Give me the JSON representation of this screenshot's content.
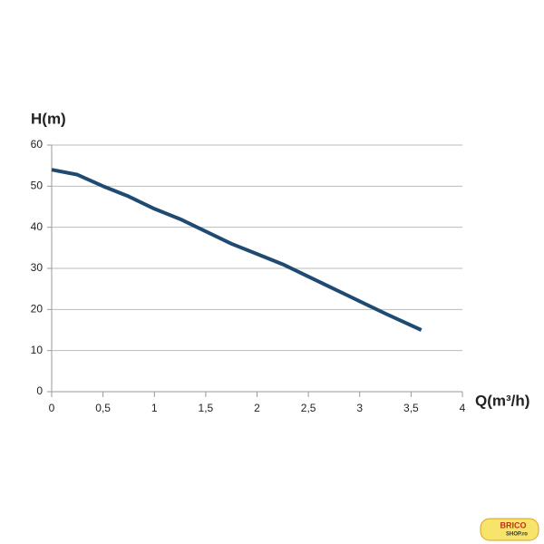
{
  "chart_data": {
    "type": "line",
    "y_label": "H(m)",
    "x_label": "Q(m³/h)",
    "x": [
      0,
      0.25,
      0.5,
      0.75,
      1,
      1.25,
      1.5,
      1.75,
      2,
      2.25,
      2.5,
      2.75,
      3,
      3.25,
      3.6
    ],
    "series": [
      {
        "color": "#1f4a72",
        "values": [
          54,
          52.8,
          50,
          47.5,
          44.5,
          42,
          39,
          36,
          33.5,
          31,
          28,
          25,
          22,
          19,
          15
        ]
      }
    ],
    "xlim": [
      0,
      4
    ],
    "xticks": [
      0,
      {
        "value": 0.5,
        "label": "0,5"
      },
      1,
      {
        "value": 1.5,
        "label": "1,5"
      },
      2,
      {
        "value": 2.5,
        "label": "2,5"
      },
      3,
      {
        "value": 3.5,
        "label": "3,5"
      },
      4
    ],
    "ylim": [
      0,
      60
    ],
    "yticks": [
      0,
      10,
      20,
      30,
      40,
      50,
      60
    ],
    "grid": true
  },
  "watermark": {
    "line1": "BRICO",
    "line2": "SHOP.ro"
  }
}
